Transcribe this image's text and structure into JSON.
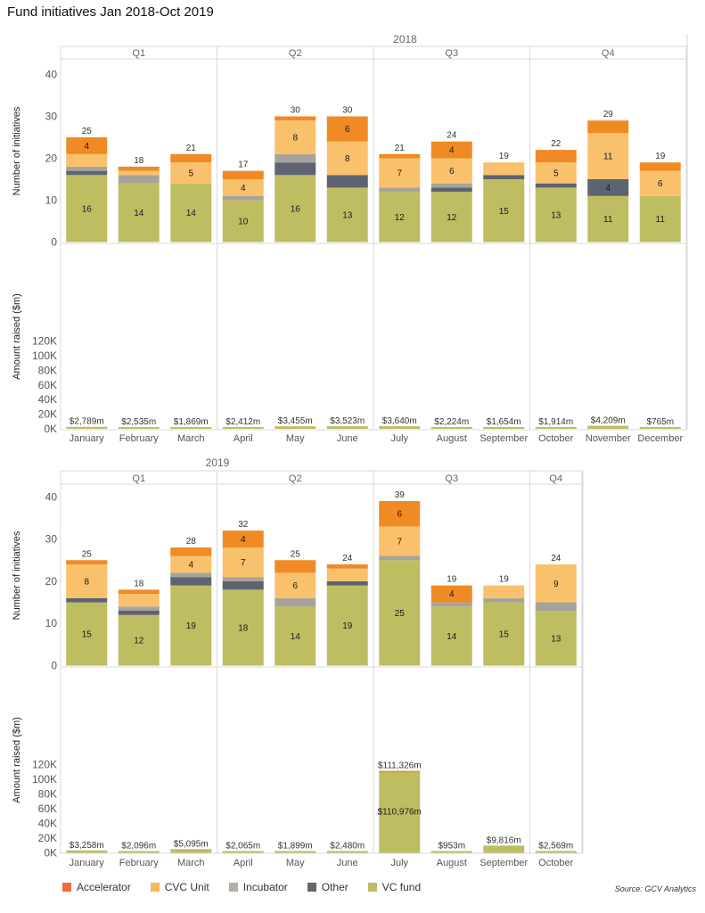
{
  "title": "Fund initiatives Jan 2018-Oct 2019",
  "source": "Source: GCV Analytics",
  "colors": {
    "Accelerator": "#f08a24",
    "CVC Unit": "#f9c16c",
    "Incubator": "#a8a39a",
    "Other": "#5d6371",
    "VC fund": "#bfbd62",
    "Amount": "#bfbd62"
  },
  "legend": [
    {
      "name": "Accelerator",
      "color": "#ee6c3a"
    },
    {
      "name": "CVC Unit",
      "color": "#f9b857"
    },
    {
      "name": "Incubator",
      "color": "#b6ada3"
    },
    {
      "name": "Other",
      "color": "#6b6464"
    },
    {
      "name": "VC fund",
      "color": "#bcbd62"
    }
  ],
  "chart_data": [
    {
      "type": "bar",
      "stacked": true,
      "year": "2018",
      "quarters": [
        {
          "label": "Q1",
          "months": 3
        },
        {
          "label": "Q2",
          "months": 3
        },
        {
          "label": "Q3",
          "months": 3
        },
        {
          "label": "Q4",
          "months": 3
        }
      ],
      "categories": [
        "January",
        "February",
        "March",
        "April",
        "May",
        "June",
        "July",
        "August",
        "September",
        "October",
        "November",
        "December"
      ],
      "initiatives_axis": {
        "label": "Number of initiatives",
        "ylim": [
          0,
          45
        ],
        "ticks": [
          0,
          10,
          20,
          30,
          40
        ]
      },
      "series": [
        {
          "name": "VC fund",
          "values": [
            16,
            14,
            14,
            10,
            16,
            13,
            12,
            12,
            15,
            13,
            11,
            11
          ],
          "labels": [
            "16",
            "14",
            "14",
            "10",
            "16",
            "13",
            "12",
            "12",
            "15",
            "13",
            "11",
            "11"
          ]
        },
        {
          "name": "Other",
          "values": [
            1,
            0,
            0,
            0,
            3,
            3,
            0,
            1,
            1,
            1,
            4,
            0
          ],
          "labels": [
            "",
            "",
            "",
            "",
            "",
            "",
            "",
            "",
            "",
            "",
            "4",
            ""
          ]
        },
        {
          "name": "Incubator",
          "values": [
            1,
            2,
            0,
            1,
            2,
            0,
            1,
            1,
            0,
            0,
            0,
            0
          ],
          "labels": [
            "",
            "",
            "",
            "",
            "",
            "",
            "",
            "",
            "",
            "",
            "",
            ""
          ]
        },
        {
          "name": "CVC Unit",
          "values": [
            3,
            1,
            5,
            4,
            8,
            8,
            7,
            6,
            3,
            5,
            11,
            6
          ],
          "labels": [
            "",
            "",
            "5",
            "4",
            "8",
            "8",
            "7",
            "6",
            "",
            "5",
            "11",
            "6"
          ]
        },
        {
          "name": "Accelerator",
          "values": [
            4,
            1,
            2,
            2,
            1,
            6,
            1,
            4,
            0,
            3,
            3,
            2
          ],
          "labels": [
            "4",
            "",
            "",
            "",
            "",
            "6",
            "",
            "4",
            "",
            "",
            "",
            ""
          ]
        }
      ],
      "totals": [
        25,
        18,
        21,
        17,
        30,
        30,
        21,
        24,
        19,
        22,
        29,
        19
      ],
      "amount_axis": {
        "label": "Amount raised ($m)",
        "ylim": [
          0,
          125000
        ],
        "ticks": [
          0,
          20000,
          40000,
          60000,
          80000,
          100000,
          120000
        ],
        "tick_labels": [
          "0K",
          "20K",
          "40K",
          "60K",
          "80K",
          "100K",
          "120K"
        ]
      },
      "amounts": [
        2789,
        2535,
        1869,
        2412,
        3455,
        3523,
        3640,
        2224,
        1654,
        1914,
        4209,
        765
      ],
      "amount_labels": [
        "$2,789m",
        "$2,535m",
        "$1,869m",
        "$2,412m",
        "$3,455m",
        "$3,523m",
        "$3,640m",
        "$2,224m",
        "$1,654m",
        "$1,914m",
        "$4,209m",
        "$765m"
      ],
      "amount_inner_labels": [
        "",
        "",
        "",
        "",
        "",
        "",
        "",
        "",
        "",
        "",
        "",
        ""
      ]
    },
    {
      "type": "bar",
      "stacked": true,
      "year": "2019",
      "quarters": [
        {
          "label": "Q1",
          "months": 3
        },
        {
          "label": "Q2",
          "months": 3
        },
        {
          "label": "Q3",
          "months": 3
        },
        {
          "label": "Q4",
          "months": 1
        }
      ],
      "categories": [
        "January",
        "February",
        "March",
        "April",
        "May",
        "June",
        "July",
        "August",
        "September",
        "October"
      ],
      "initiatives_axis": {
        "label": "Number of initiatives",
        "ylim": [
          0,
          45
        ],
        "ticks": [
          0,
          10,
          20,
          30,
          40
        ]
      },
      "series": [
        {
          "name": "VC fund",
          "values": [
            15,
            12,
            19,
            18,
            14,
            19,
            25,
            14,
            15,
            13
          ],
          "labels": [
            "15",
            "12",
            "19",
            "18",
            "14",
            "19",
            "25",
            "14",
            "15",
            "13"
          ]
        },
        {
          "name": "Other",
          "values": [
            1,
            1,
            2,
            2,
            0,
            1,
            0,
            0,
            0,
            0
          ],
          "labels": [
            "",
            "",
            "",
            "",
            "",
            "",
            "",
            "",
            "",
            ""
          ]
        },
        {
          "name": "Incubator",
          "values": [
            0,
            1,
            1,
            1,
            2,
            0,
            1,
            1,
            1,
            2
          ],
          "labels": [
            "",
            "",
            "",
            "",
            "",
            "",
            "",
            "",
            "",
            ""
          ]
        },
        {
          "name": "CVC Unit",
          "values": [
            8,
            3,
            4,
            7,
            6,
            3,
            7,
            0,
            3,
            9
          ],
          "labels": [
            "8",
            "",
            "4",
            "7",
            "6",
            "",
            "7",
            "",
            "",
            "9"
          ]
        },
        {
          "name": "Accelerator",
          "values": [
            1,
            1,
            2,
            4,
            3,
            1,
            6,
            4,
            0,
            0
          ],
          "labels": [
            "",
            "",
            "",
            "4",
            "",
            "",
            "6",
            "4",
            "",
            ""
          ]
        }
      ],
      "totals": [
        25,
        18,
        28,
        32,
        25,
        24,
        39,
        19,
        19,
        24
      ],
      "amount_axis": {
        "label": "Amount raised ($m)",
        "ylim": [
          0,
          125000
        ],
        "ticks": [
          0,
          20000,
          40000,
          60000,
          80000,
          100000,
          120000
        ],
        "tick_labels": [
          "0K",
          "20K",
          "40K",
          "60K",
          "80K",
          "100K",
          "120K"
        ]
      },
      "amounts": [
        3258,
        2096,
        5095,
        2065,
        1899,
        2480,
        111326,
        953,
        9816,
        2569
      ],
      "amount_labels": [
        "$3,258m",
        "$2,096m",
        "$5,095m",
        "$2,065m",
        "$1,899m",
        "$2,480m",
        "$111,326m",
        "$953m",
        "$9,816m",
        "$2,569m"
      ],
      "amount_inner_labels": [
        "",
        "",
        "",
        "",
        "",
        "",
        "$110,976m",
        "",
        "",
        ""
      ]
    }
  ]
}
